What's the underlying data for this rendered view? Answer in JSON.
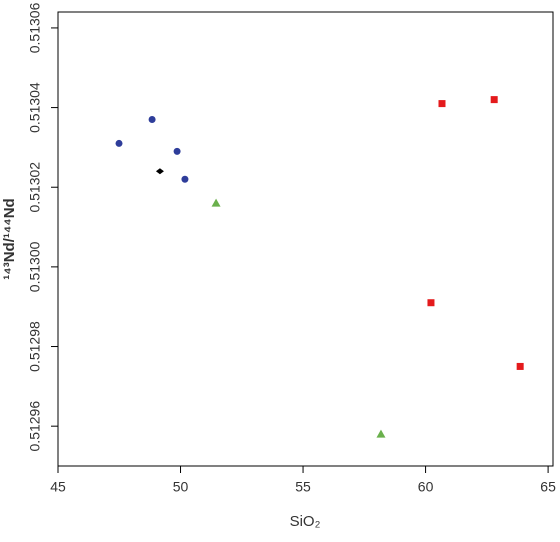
{
  "chart_data": {
    "type": "scatter",
    "xlabel": "SiO₂",
    "ylabel": "¹⁴³Nd/¹⁴⁴Nd",
    "xlim": [
      45,
      65.2
    ],
    "xticks": [
      45,
      50,
      55,
      60,
      65
    ],
    "ylim": [
      0.51295,
      0.513064
    ],
    "yticks": [
      {
        "value": 0.51296,
        "label": "0.51296"
      },
      {
        "value": 0.51298,
        "label": "0.51298"
      },
      {
        "value": 0.513,
        "label": "0.51300"
      },
      {
        "value": 0.51302,
        "label": "0.51302"
      },
      {
        "value": 0.51304,
        "label": "0.51304"
      },
      {
        "value": 0.51306,
        "label": "0.51306"
      }
    ],
    "grid": false,
    "series": [
      {
        "color": "#2e3d9a",
        "marker": "circle",
        "x": [
          47.49,
          48.84,
          49.86,
          50.18
        ],
        "values": [
          0.513031,
          0.513037,
          0.513029,
          0.513022
        ]
      },
      {
        "color": "#000000",
        "marker": "diamond",
        "x": [
          49.16
        ],
        "values": [
          0.513024
        ]
      },
      {
        "color": "#6ab04c",
        "marker": "triangle",
        "x": [
          51.45,
          58.18
        ],
        "values": [
          0.513016,
          0.512958
        ]
      },
      {
        "color": "#e41a1c",
        "marker": "square",
        "x": [
          60.67,
          62.8,
          60.22,
          63.86
        ],
        "values": [
          0.513041,
          0.513042,
          0.512991,
          0.512975
        ]
      }
    ]
  }
}
